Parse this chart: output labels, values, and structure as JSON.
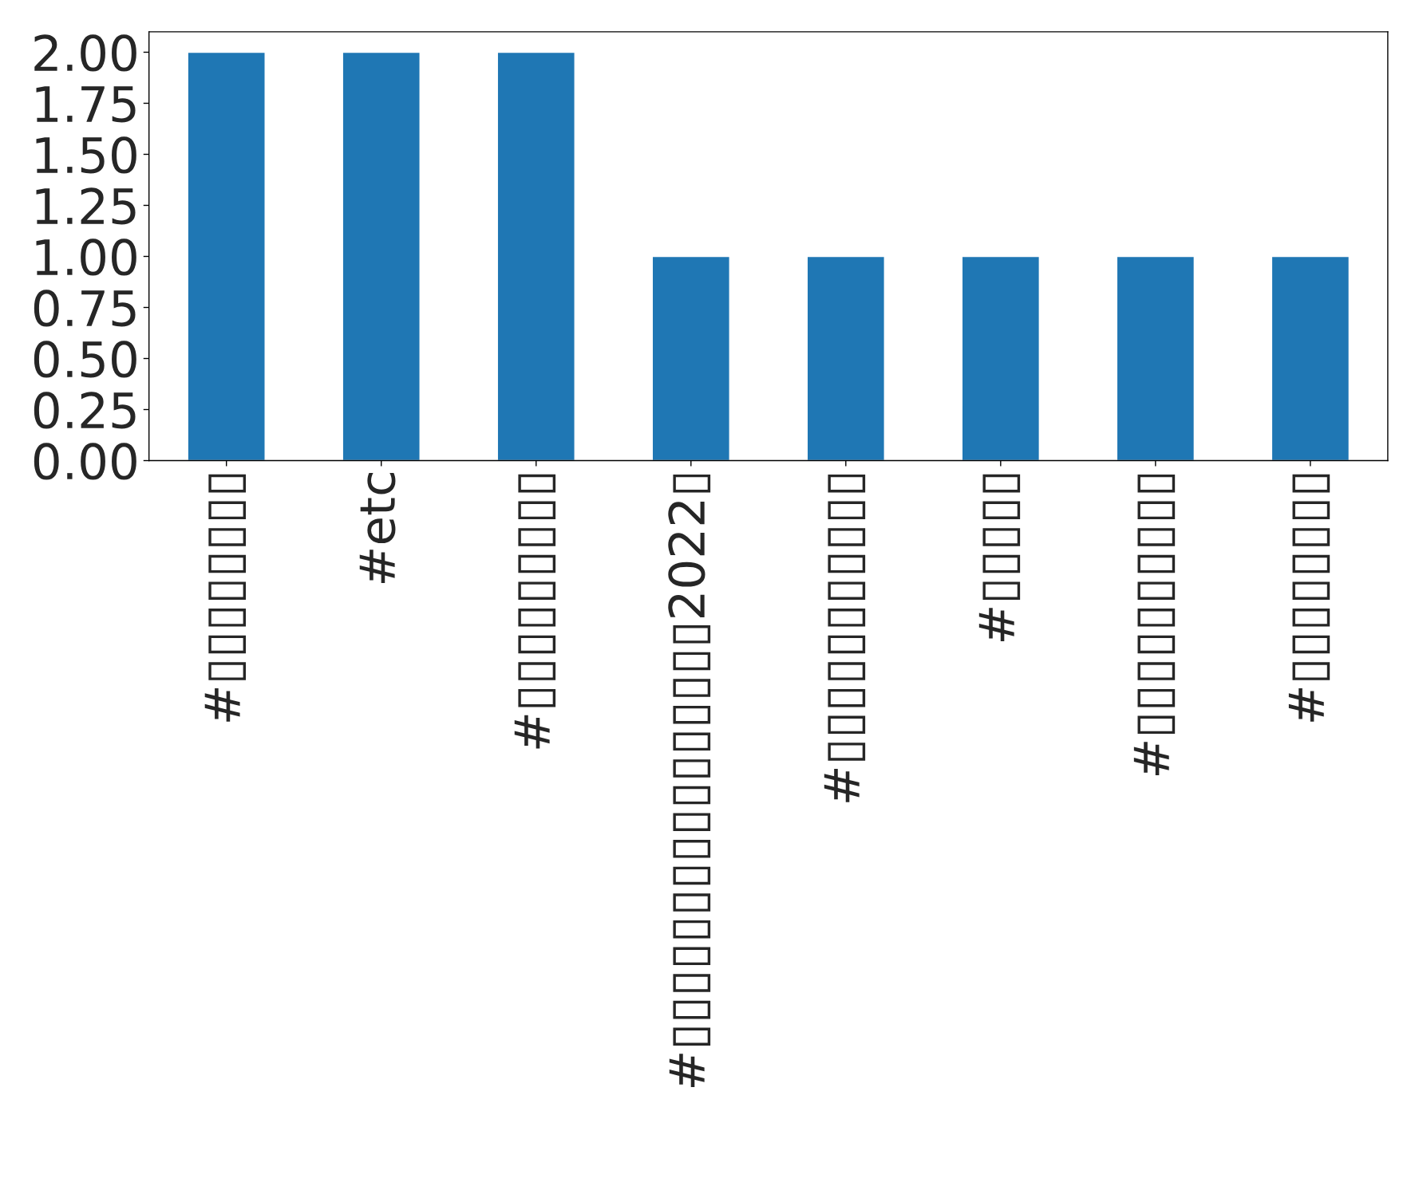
{
  "chart_data": {
    "type": "bar",
    "categories": [
      "#▯▯▯▯▯▯▯▯",
      "#etc",
      "#▯▯▯▯▯▯▯▯▯",
      "#▯▯▯▯▯▯▯▯▯▯▯▯▯▯▯▯2022▯",
      "#▯▯▯▯▯▯▯▯▯▯▯",
      "#▯▯▯▯▯",
      "#▯▯▯▯▯▯▯▯▯▯",
      "#▯▯▯▯▯▯▯▯"
    ],
    "values": [
      2,
      2,
      2,
      1,
      1,
      1,
      1,
      1
    ],
    "color": "#1f77b4",
    "ylim": [
      0,
      2.1
    ],
    "yticks": [
      {
        "value": 0,
        "label": "0.00"
      },
      {
        "value": 0.25,
        "label": "0.25"
      },
      {
        "value": 0.5,
        "label": "0.50"
      },
      {
        "value": 0.75,
        "label": "0.75"
      },
      {
        "value": 1,
        "label": "1.00"
      },
      {
        "value": 1.25,
        "label": "1.25"
      },
      {
        "value": 1.5,
        "label": "1.50"
      },
      {
        "value": 1.75,
        "label": "1.75"
      },
      {
        "value": 2,
        "label": "2.00"
      }
    ],
    "grid": false,
    "legend": false
  }
}
